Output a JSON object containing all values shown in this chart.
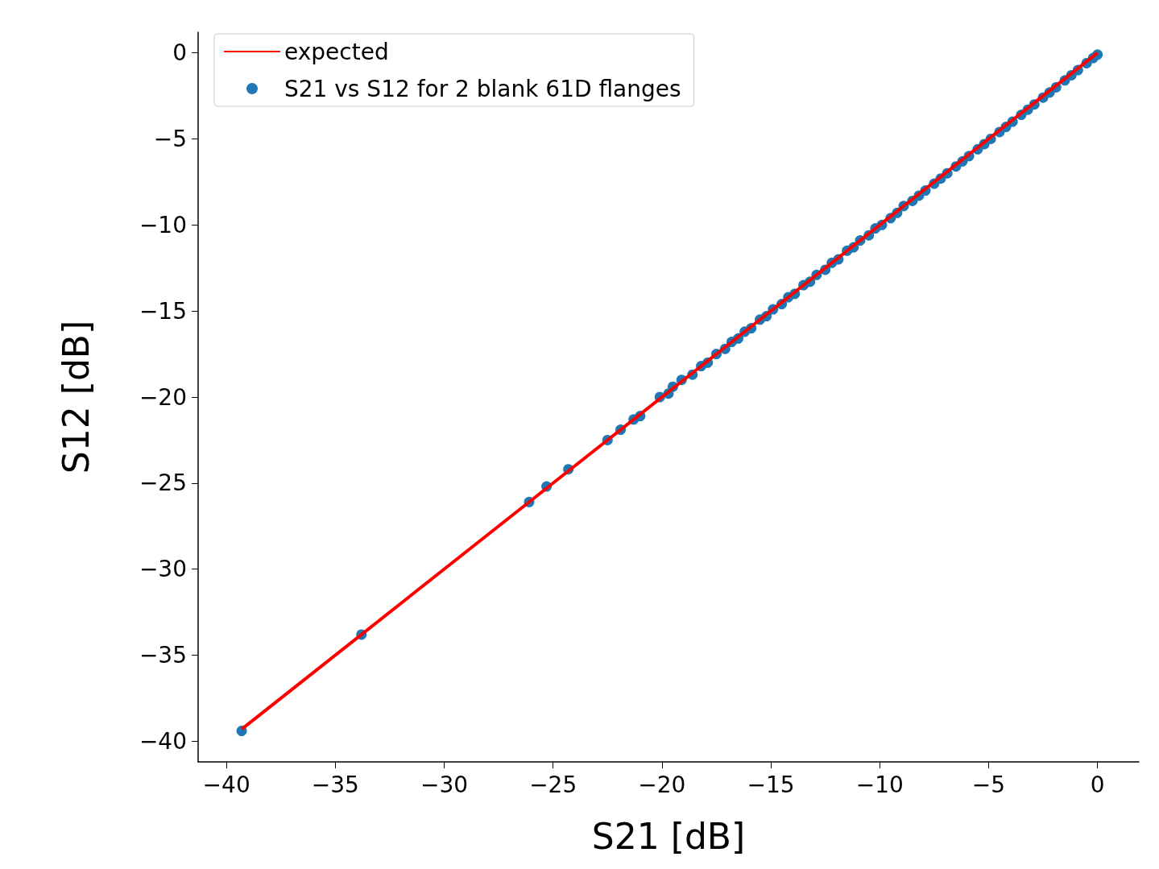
{
  "chart_data": {
    "type": "scatter",
    "xlabel": "S21 [dB]",
    "ylabel": "S12 [dB]",
    "xlim": [
      -41.3,
      1.9
    ],
    "ylim": [
      -41.2,
      1.2
    ],
    "xticks": [
      -40,
      -35,
      -30,
      -25,
      -20,
      -15,
      -10,
      -5,
      0
    ],
    "yticks": [
      0,
      -5,
      -10,
      -15,
      -20,
      -25,
      -30,
      -35,
      -40
    ],
    "grid": false,
    "legend": "top left",
    "series": [
      {
        "name": "expected",
        "type": "line",
        "marker": "none",
        "color": "#ff0000",
        "x": [
          -39.3,
          0
        ],
        "values": [
          -39.3,
          0
        ]
      },
      {
        "name": "S21 vs S12 for 2 blank 61D flanges",
        "marker": "circle",
        "color": "#1f77b4",
        "x": [
          -39.3,
          -33.8,
          -26.1,
          -25.3,
          -24.3,
          -22.5,
          -21.9,
          -21.3,
          -21.0,
          -20.1,
          -19.7,
          -19.5,
          -19.1,
          -18.6,
          -18.2,
          -17.9,
          -17.5,
          -17.1,
          -16.8,
          -16.5,
          -16.2,
          -15.9,
          -15.5,
          -15.2,
          -14.9,
          -14.5,
          -14.2,
          -13.9,
          -13.5,
          -13.2,
          -12.9,
          -12.5,
          -12.2,
          -11.9,
          -11.5,
          -11.2,
          -10.9,
          -10.5,
          -10.2,
          -9.9,
          -9.5,
          -9.2,
          -8.9,
          -8.5,
          -8.2,
          -7.9,
          -7.5,
          -7.2,
          -6.9,
          -6.5,
          -6.2,
          -5.9,
          -5.5,
          -5.2,
          -4.9,
          -4.5,
          -4.2,
          -3.9,
          -3.5,
          -3.2,
          -2.9,
          -2.5,
          -2.2,
          -1.9,
          -1.5,
          -1.2,
          -0.9,
          -0.5,
          -0.2,
          0
        ],
        "values": [
          -39.4,
          -33.8,
          -26.1,
          -25.2,
          -24.2,
          -22.5,
          -21.9,
          -21.3,
          -21.1,
          -20.0,
          -19.8,
          -19.4,
          -19.0,
          -18.7,
          -18.2,
          -18.0,
          -17.5,
          -17.2,
          -16.8,
          -16.6,
          -16.2,
          -16.0,
          -15.5,
          -15.3,
          -14.9,
          -14.6,
          -14.2,
          -14.0,
          -13.5,
          -13.3,
          -12.9,
          -12.6,
          -12.2,
          -12.0,
          -11.5,
          -11.3,
          -10.9,
          -10.6,
          -10.2,
          -10.0,
          -9.6,
          -9.3,
          -8.9,
          -8.6,
          -8.3,
          -8.0,
          -7.6,
          -7.3,
          -7.0,
          -6.6,
          -6.3,
          -6.0,
          -5.6,
          -5.3,
          -5.0,
          -4.6,
          -4.3,
          -4.0,
          -3.6,
          -3.3,
          -3.0,
          -2.6,
          -2.3,
          -2.0,
          -1.6,
          -1.3,
          -1.0,
          -0.6,
          -0.3,
          -0.1
        ]
      }
    ]
  }
}
